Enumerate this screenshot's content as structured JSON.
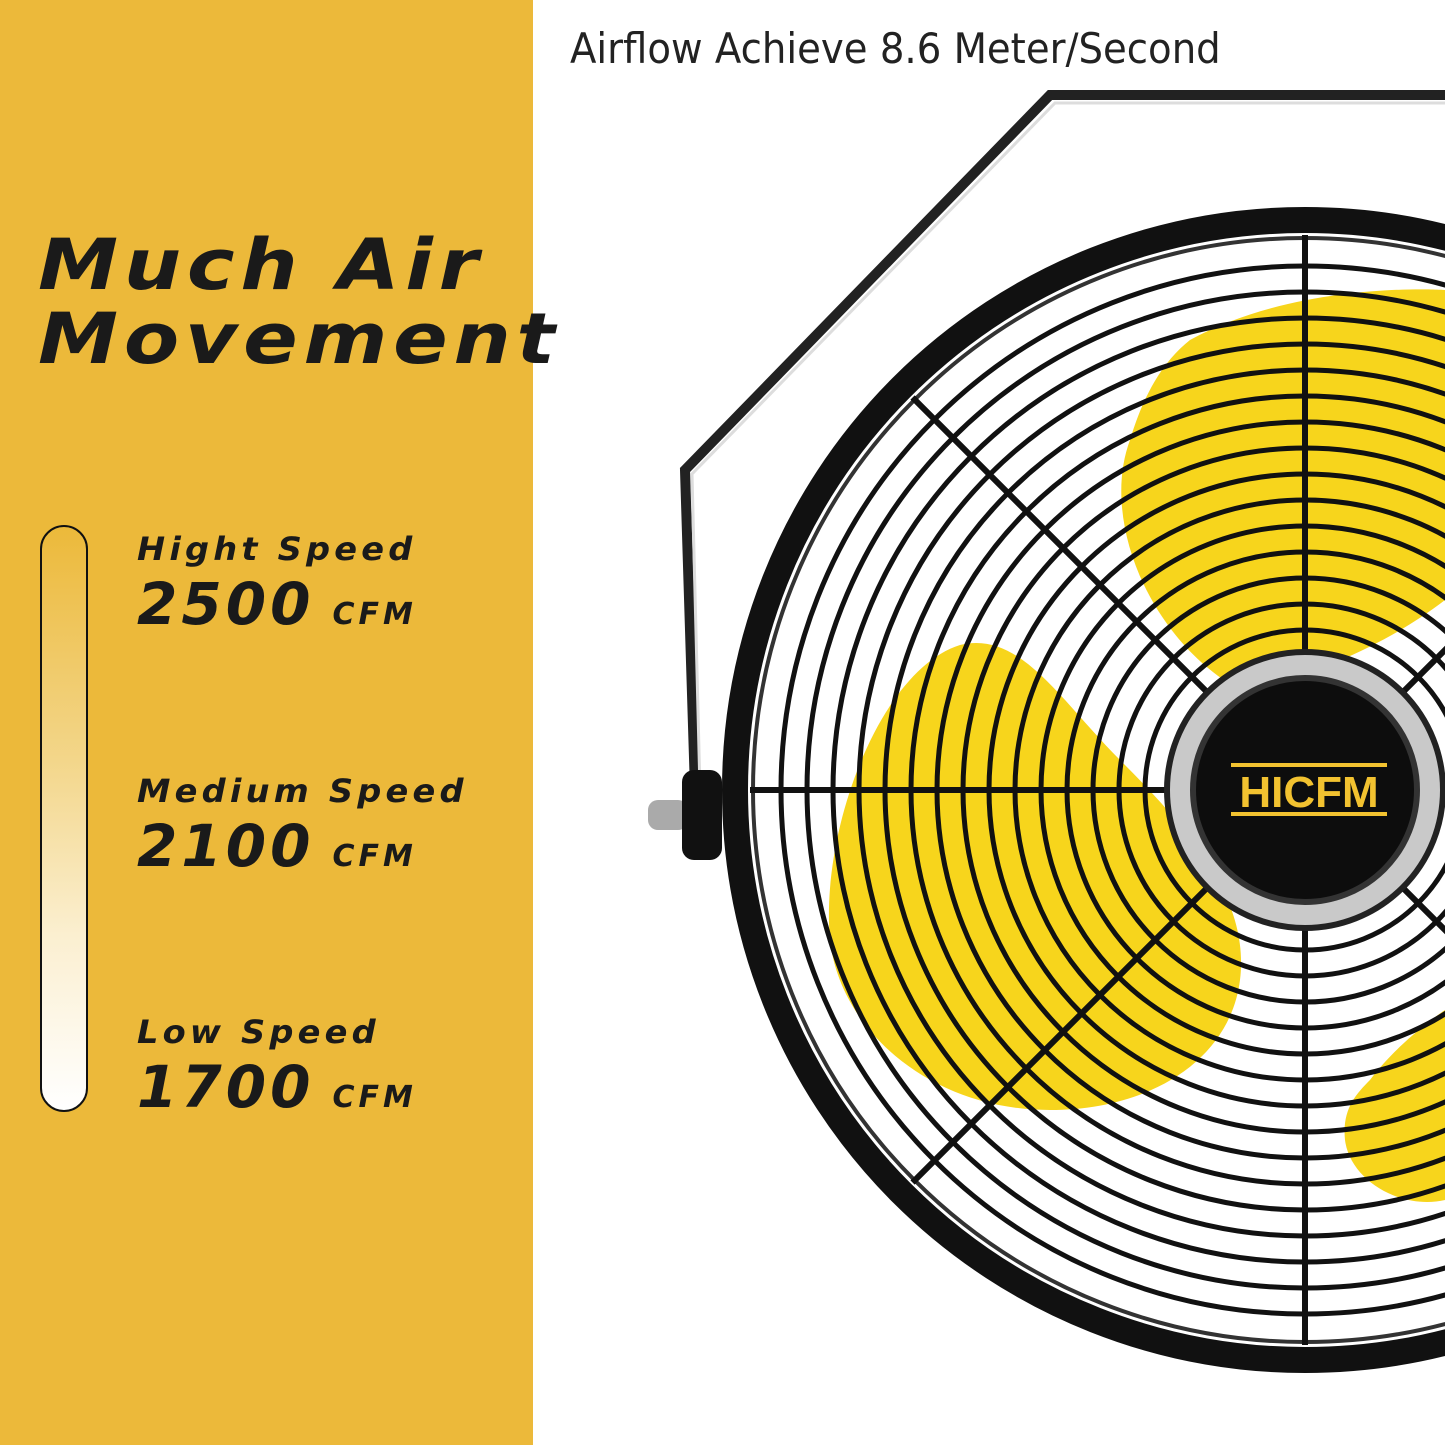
{
  "headline": {
    "line1": "Much Air",
    "line2": "Movement"
  },
  "caption": "Airflow Achieve 8.6 Meter/Second",
  "speeds": [
    {
      "label": "Hight Speed",
      "value": "2500",
      "unit": "CFM"
    },
    {
      "label": "Medium Speed",
      "value": "2100",
      "unit": "CFM"
    },
    {
      "label": "Low Speed",
      "value": "1700",
      "unit": "CFM"
    }
  ],
  "brand": "HICFM",
  "colors": {
    "panel": "#ECB93A",
    "blade": "#F7D51C",
    "grille": "#111111",
    "logo": "#F2C230"
  }
}
